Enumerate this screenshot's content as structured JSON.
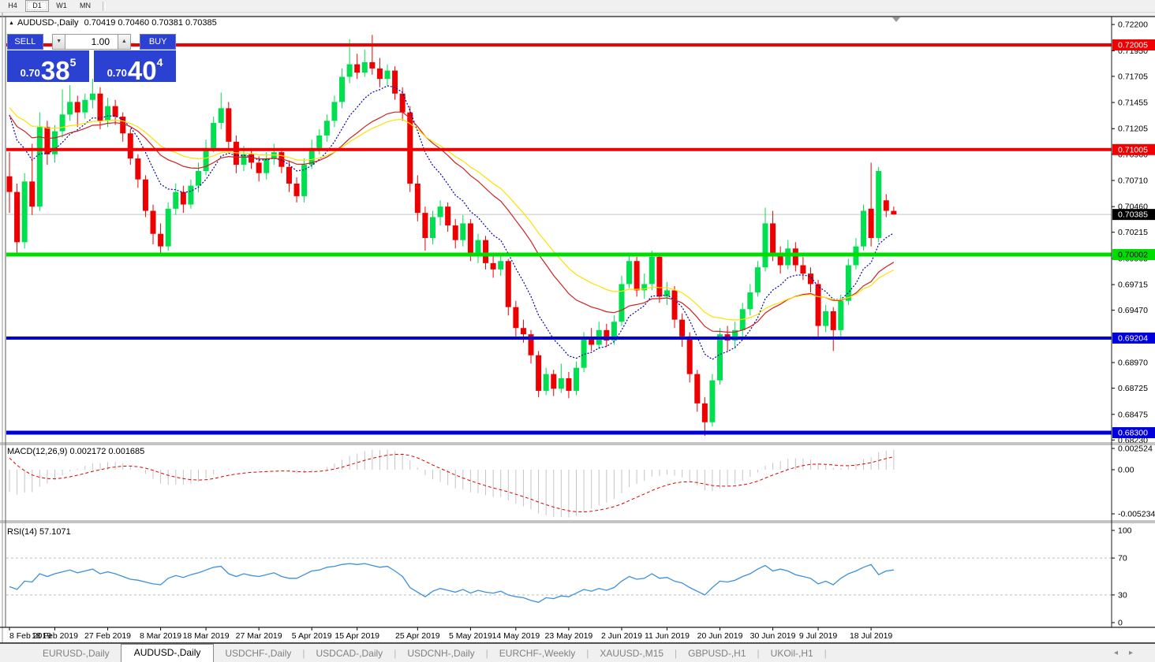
{
  "toolbar": {
    "timeframes": [
      {
        "label": "H4",
        "active": false
      },
      {
        "label": "D1",
        "active": true
      },
      {
        "label": "W1",
        "active": false
      },
      {
        "label": "MN",
        "active": false
      }
    ]
  },
  "chart": {
    "title_marker": "▲",
    "symbol_title": "AUDUSD-,Daily",
    "ohlc_display": "0.70419 0.70460 0.70381 0.70385"
  },
  "trade_panel": {
    "sell_label": "SELL",
    "buy_label": "BUY",
    "volume": "1.00",
    "spin_down": "▼",
    "spin_up": "▲",
    "sell_price_small": "0.70",
    "sell_price_big": "38",
    "sell_price_sup": "5",
    "buy_price_small": "0.70",
    "buy_price_big": "40",
    "buy_price_sup": "4"
  },
  "indicators": {
    "macd_label": "MACD(12,26,9) 0.002172 0.001685",
    "rsi_label": "RSI(14) 57.1071"
  },
  "tabs": {
    "items": [
      {
        "label": "EURUSD-,Daily",
        "active": false
      },
      {
        "label": "AUDUSD-,Daily",
        "active": true
      },
      {
        "label": "USDCHF-,Daily",
        "active": false
      },
      {
        "label": "USDCAD-,Daily",
        "active": false
      },
      {
        "label": "USDCNH-,Daily",
        "active": false
      },
      {
        "label": "EURCHF-,Weekly",
        "active": false
      },
      {
        "label": "XAUUSD-,M15",
        "active": false
      },
      {
        "label": "GBPUSD-,H1",
        "active": false
      },
      {
        "label": "UKOil-,H1",
        "active": false
      }
    ],
    "scroll_left": "◂",
    "scroll_right": "▸"
  },
  "chart_data": {
    "type": "candlestick",
    "symbol": "AUDUSD",
    "timeframe": "Daily",
    "current_bar": {
      "open": 0.70419,
      "high": 0.7046,
      "low": 0.70381,
      "close": 0.70385
    },
    "colors": {
      "bull": "#00df50",
      "bear": "#ee0000",
      "bid_line": "#c8c8c8",
      "ma_fast": "#0000b4",
      "ma_mid": "#cc2222",
      "ma_slow": "#ffe000",
      "macd_hist": "#c4c4c4",
      "macd_signal": "#dd0000",
      "rsi_line": "#3d8fdd",
      "level_red": "#f00000",
      "level_green": "#00dd00",
      "level_blue": "#0000dd"
    },
    "price_axis": {
      "ticks": [
        0.722,
        0.7195,
        0.71705,
        0.71455,
        0.71205,
        0.7096,
        0.7071,
        0.7046,
        0.70215,
        0.69965,
        0.69715,
        0.6947,
        0.6897,
        0.68725,
        0.68475,
        0.6823
      ],
      "current_price": 0.70385
    },
    "levels": [
      {
        "value": 0.72005,
        "color": "#f00000",
        "width": 4,
        "text": "#ffffff"
      },
      {
        "value": 0.71005,
        "color": "#f00000",
        "width": 4,
        "text": "#ffffff"
      },
      {
        "value": 0.70002,
        "color": "#00dd00",
        "width": 5,
        "text": "#000000"
      },
      {
        "value": 0.69204,
        "color": "#0000dd",
        "width": 4,
        "text": "#ffffff"
      },
      {
        "value": 0.683,
        "color": "#0000dd",
        "width": 5,
        "text": "#ffffff"
      }
    ],
    "date_ticks": [
      {
        "i": 0,
        "label": "8 Feb 2019"
      },
      {
        "i": 6,
        "label": "18 Feb 2019"
      },
      {
        "i": 13,
        "label": "27 Feb 2019"
      },
      {
        "i": 20,
        "label": "8 Mar 2019"
      },
      {
        "i": 26,
        "label": "18 Mar 2019"
      },
      {
        "i": 33,
        "label": "27 Mar 2019"
      },
      {
        "i": 40,
        "label": "5 Apr 2019"
      },
      {
        "i": 46,
        "label": "15 Apr 2019"
      },
      {
        "i": 54,
        "label": "25 Apr 2019"
      },
      {
        "i": 61,
        "label": "5 May 2019"
      },
      {
        "i": 67,
        "label": "14 May 2019"
      },
      {
        "i": 74,
        "label": "23 May 2019"
      },
      {
        "i": 81,
        "label": "2 Jun 2019"
      },
      {
        "i": 87,
        "label": "11 Jun 2019"
      },
      {
        "i": 94,
        "label": "20 Jun 2019"
      },
      {
        "i": 101,
        "label": "30 Jun 2019"
      },
      {
        "i": 107,
        "label": "9 Jul 2019"
      },
      {
        "i": 114,
        "label": "18 Jul 2019"
      }
    ],
    "candles": [
      [
        0.7075,
        0.7098,
        0.704,
        0.706
      ],
      [
        0.706,
        0.7068,
        0.7,
        0.7012
      ],
      [
        0.7012,
        0.7078,
        0.7006,
        0.707
      ],
      [
        0.707,
        0.7106,
        0.7038,
        0.7046
      ],
      [
        0.7046,
        0.7136,
        0.7042,
        0.7122
      ],
      [
        0.7122,
        0.7128,
        0.7086,
        0.7096
      ],
      [
        0.7096,
        0.7124,
        0.7088,
        0.7118
      ],
      [
        0.7118,
        0.7158,
        0.7112,
        0.7134
      ],
      [
        0.7134,
        0.7162,
        0.7128,
        0.7146
      ],
      [
        0.7146,
        0.7152,
        0.7122,
        0.7136
      ],
      [
        0.7136,
        0.7154,
        0.713,
        0.7148
      ],
      [
        0.7148,
        0.7168,
        0.714,
        0.7154
      ],
      [
        0.7154,
        0.716,
        0.712,
        0.7128
      ],
      [
        0.7128,
        0.715,
        0.7122,
        0.7142
      ],
      [
        0.7142,
        0.7148,
        0.7124,
        0.7132
      ],
      [
        0.7132,
        0.7136,
        0.7108,
        0.7116
      ],
      [
        0.7116,
        0.712,
        0.7086,
        0.7092
      ],
      [
        0.7092,
        0.7096,
        0.7064,
        0.7072
      ],
      [
        0.7072,
        0.7076,
        0.7036,
        0.7042
      ],
      [
        0.7042,
        0.7048,
        0.701,
        0.702
      ],
      [
        0.702,
        0.703,
        0.7,
        0.7008
      ],
      [
        0.7008,
        0.705,
        0.7004,
        0.7044
      ],
      [
        0.7044,
        0.7068,
        0.7038,
        0.706
      ],
      [
        0.706,
        0.7066,
        0.704,
        0.7048
      ],
      [
        0.7048,
        0.7072,
        0.7044,
        0.7066
      ],
      [
        0.7066,
        0.7088,
        0.706,
        0.708
      ],
      [
        0.708,
        0.711,
        0.7076,
        0.7102
      ],
      [
        0.7102,
        0.7132,
        0.7098,
        0.7126
      ],
      [
        0.7126,
        0.7155,
        0.712,
        0.714
      ],
      [
        0.714,
        0.7146,
        0.71,
        0.7108
      ],
      [
        0.7108,
        0.7114,
        0.7078,
        0.7086
      ],
      [
        0.7086,
        0.7104,
        0.708,
        0.7096
      ],
      [
        0.7096,
        0.7102,
        0.7082,
        0.7088
      ],
      [
        0.7088,
        0.7094,
        0.707,
        0.7078
      ],
      [
        0.7078,
        0.7098,
        0.7072,
        0.7092
      ],
      [
        0.7092,
        0.7106,
        0.7086,
        0.7098
      ],
      [
        0.7098,
        0.7102,
        0.7078,
        0.7084
      ],
      [
        0.7084,
        0.709,
        0.706,
        0.7068
      ],
      [
        0.7068,
        0.7074,
        0.705,
        0.7056
      ],
      [
        0.7056,
        0.7092,
        0.705,
        0.7086
      ],
      [
        0.7086,
        0.711,
        0.7082,
        0.7102
      ],
      [
        0.7102,
        0.712,
        0.7096,
        0.7114
      ],
      [
        0.7114,
        0.7134,
        0.7108,
        0.7128
      ],
      [
        0.7128,
        0.7152,
        0.7122,
        0.7146
      ],
      [
        0.7146,
        0.7178,
        0.714,
        0.717
      ],
      [
        0.717,
        0.7206,
        0.7164,
        0.7182
      ],
      [
        0.7182,
        0.7192,
        0.7168,
        0.7174
      ],
      [
        0.7174,
        0.7196,
        0.717,
        0.7184
      ],
      [
        0.7184,
        0.721,
        0.7172,
        0.7178
      ],
      [
        0.7178,
        0.7188,
        0.716,
        0.7168
      ],
      [
        0.7168,
        0.7182,
        0.7162,
        0.7176
      ],
      [
        0.7176,
        0.718,
        0.7148,
        0.7154
      ],
      [
        0.7154,
        0.716,
        0.7128,
        0.7136
      ],
      [
        0.7136,
        0.7142,
        0.706,
        0.7068
      ],
      [
        0.7068,
        0.7076,
        0.7032,
        0.704
      ],
      [
        0.704,
        0.7046,
        0.7004,
        0.7016
      ],
      [
        0.7016,
        0.7042,
        0.701,
        0.7036
      ],
      [
        0.7036,
        0.7052,
        0.7028,
        0.7046
      ],
      [
        0.7046,
        0.705,
        0.7022,
        0.7028
      ],
      [
        0.7028,
        0.7034,
        0.7006,
        0.7014
      ],
      [
        0.7014,
        0.7038,
        0.7008,
        0.703
      ],
      [
        0.703,
        0.7034,
        0.6994,
        0.7
      ],
      [
        0.7,
        0.702,
        0.6992,
        0.7014
      ],
      [
        0.7014,
        0.7018,
        0.6986,
        0.6992
      ],
      [
        0.6992,
        0.7,
        0.6978,
        0.6986
      ],
      [
        0.6986,
        0.7002,
        0.698,
        0.6994
      ],
      [
        0.6994,
        0.6996,
        0.6942,
        0.695
      ],
      [
        0.695,
        0.6956,
        0.6922,
        0.693
      ],
      [
        0.693,
        0.6938,
        0.6916,
        0.6924
      ],
      [
        0.6924,
        0.6928,
        0.6896,
        0.6904
      ],
      [
        0.6904,
        0.6908,
        0.6864,
        0.687
      ],
      [
        0.687,
        0.6892,
        0.6866,
        0.6886
      ],
      [
        0.6886,
        0.689,
        0.6865,
        0.6872
      ],
      [
        0.6872,
        0.6896,
        0.6868,
        0.6882
      ],
      [
        0.6882,
        0.6888,
        0.6863,
        0.687
      ],
      [
        0.687,
        0.6898,
        0.6866,
        0.6892
      ],
      [
        0.6892,
        0.6926,
        0.6888,
        0.692
      ],
      [
        0.692,
        0.693,
        0.6908,
        0.6914
      ],
      [
        0.6914,
        0.6936,
        0.691,
        0.6928
      ],
      [
        0.6928,
        0.6934,
        0.6912,
        0.6918
      ],
      [
        0.6918,
        0.6942,
        0.6914,
        0.6936
      ],
      [
        0.6936,
        0.698,
        0.6932,
        0.6972
      ],
      [
        0.6972,
        0.7,
        0.6968,
        0.6994
      ],
      [
        0.6994,
        0.6998,
        0.696,
        0.6966
      ],
      [
        0.6966,
        0.6982,
        0.6958,
        0.6972
      ],
      [
        0.6972,
        0.7004,
        0.6966,
        0.6998
      ],
      [
        0.6998,
        0.7,
        0.6954,
        0.696
      ],
      [
        0.696,
        0.6974,
        0.6952,
        0.6966
      ],
      [
        0.6966,
        0.697,
        0.693,
        0.6938
      ],
      [
        0.6938,
        0.6944,
        0.6912,
        0.6922
      ],
      [
        0.6922,
        0.6926,
        0.6878,
        0.6886
      ],
      [
        0.6886,
        0.689,
        0.685,
        0.6858
      ],
      [
        0.6858,
        0.6864,
        0.6827,
        0.684
      ],
      [
        0.684,
        0.6886,
        0.6836,
        0.688
      ],
      [
        0.688,
        0.693,
        0.6876,
        0.6924
      ],
      [
        0.6924,
        0.6932,
        0.6908,
        0.6918
      ],
      [
        0.6918,
        0.6936,
        0.691,
        0.6928
      ],
      [
        0.6928,
        0.6954,
        0.6922,
        0.6948
      ],
      [
        0.6948,
        0.6972,
        0.6942,
        0.6964
      ],
      [
        0.6964,
        0.6994,
        0.696,
        0.6988
      ],
      [
        0.6988,
        0.7045,
        0.6984,
        0.703
      ],
      [
        0.703,
        0.7042,
        0.6994,
        0.7
      ],
      [
        0.7,
        0.7008,
        0.6982,
        0.699
      ],
      [
        0.699,
        0.7014,
        0.6986,
        0.7006
      ],
      [
        0.7006,
        0.7012,
        0.6984,
        0.699
      ],
      [
        0.699,
        0.6998,
        0.6976,
        0.6982
      ],
      [
        0.6982,
        0.6988,
        0.6964,
        0.6972
      ],
      [
        0.6972,
        0.6976,
        0.692,
        0.6932
      ],
      [
        0.6932,
        0.6952,
        0.6926,
        0.6946
      ],
      [
        0.6946,
        0.695,
        0.6908,
        0.6928
      ],
      [
        0.6928,
        0.6962,
        0.6922,
        0.6956
      ],
      [
        0.6956,
        0.6996,
        0.6952,
        0.699
      ],
      [
        0.699,
        0.7016,
        0.6986,
        0.7008
      ],
      [
        0.7008,
        0.7048,
        0.7004,
        0.7042
      ],
      [
        0.7044,
        0.7088,
        0.7008,
        0.7016
      ],
      [
        0.7016,
        0.7084,
        0.7012,
        0.708
      ],
      [
        0.7052,
        0.7058,
        0.7036,
        0.7042
      ],
      [
        0.70419,
        0.7046,
        0.70381,
        0.70385
      ]
    ],
    "moving_averages": [
      {
        "name": "ma-fast-blue",
        "period": 9,
        "seed": 0.7152,
        "color": "#0000b4",
        "dash": "2,2"
      },
      {
        "name": "ma-mid-red",
        "period": 22,
        "seed": 0.714,
        "color": "#cc2222",
        "dash": ""
      },
      {
        "name": "ma-slow-yellow",
        "period": 30,
        "seed": 0.7146,
        "color": "#ffe000",
        "dash": ""
      }
    ],
    "macd": {
      "params": "12,26,9",
      "value": 0.002172,
      "signal_value": 0.001685,
      "seeds": {
        "ema_fast": 0.7078,
        "ema_slow": 0.7105,
        "signal": 0.0024
      },
      "axis_labels": [
        {
          "label": "0.002524",
          "value": 0.002524
        },
        {
          "label": "0.00",
          "value": 0
        },
        {
          "label": "-0.005234",
          "value": -0.005234
        }
      ]
    },
    "rsi": {
      "params": "14",
      "value": 57.1071,
      "levels": [
        70,
        30
      ],
      "axis_labels": [
        {
          "label": "100",
          "value": 100
        },
        {
          "label": "70",
          "value": 70
        },
        {
          "label": "30",
          "value": 30
        },
        {
          "label": "0",
          "value": 0
        }
      ],
      "values": [
        39,
        36,
        45,
        44,
        53,
        50,
        53,
        55,
        57,
        54,
        56,
        58,
        53,
        55,
        53,
        50,
        47,
        46,
        44,
        42,
        41,
        48,
        51,
        49,
        52,
        54,
        57,
        60,
        61,
        53,
        50,
        53,
        51,
        50,
        52,
        54,
        50,
        48,
        48,
        52,
        56,
        57,
        60,
        61,
        63,
        64,
        63,
        64,
        62,
        60,
        61,
        56,
        50,
        38,
        33,
        28,
        34,
        37,
        35,
        33,
        36,
        32,
        35,
        33,
        32,
        34,
        30,
        28,
        27,
        24,
        22,
        27,
        26,
        29,
        28,
        32,
        36,
        34,
        37,
        35,
        38,
        45,
        50,
        47,
        48,
        53,
        48,
        49,
        45,
        43,
        38,
        34,
        30,
        38,
        45,
        44,
        46,
        50,
        53,
        58,
        62,
        56,
        58,
        56,
        52,
        50,
        48,
        42,
        45,
        41,
        48,
        53,
        56,
        60,
        63,
        52,
        56,
        57.1
      ]
    }
  }
}
